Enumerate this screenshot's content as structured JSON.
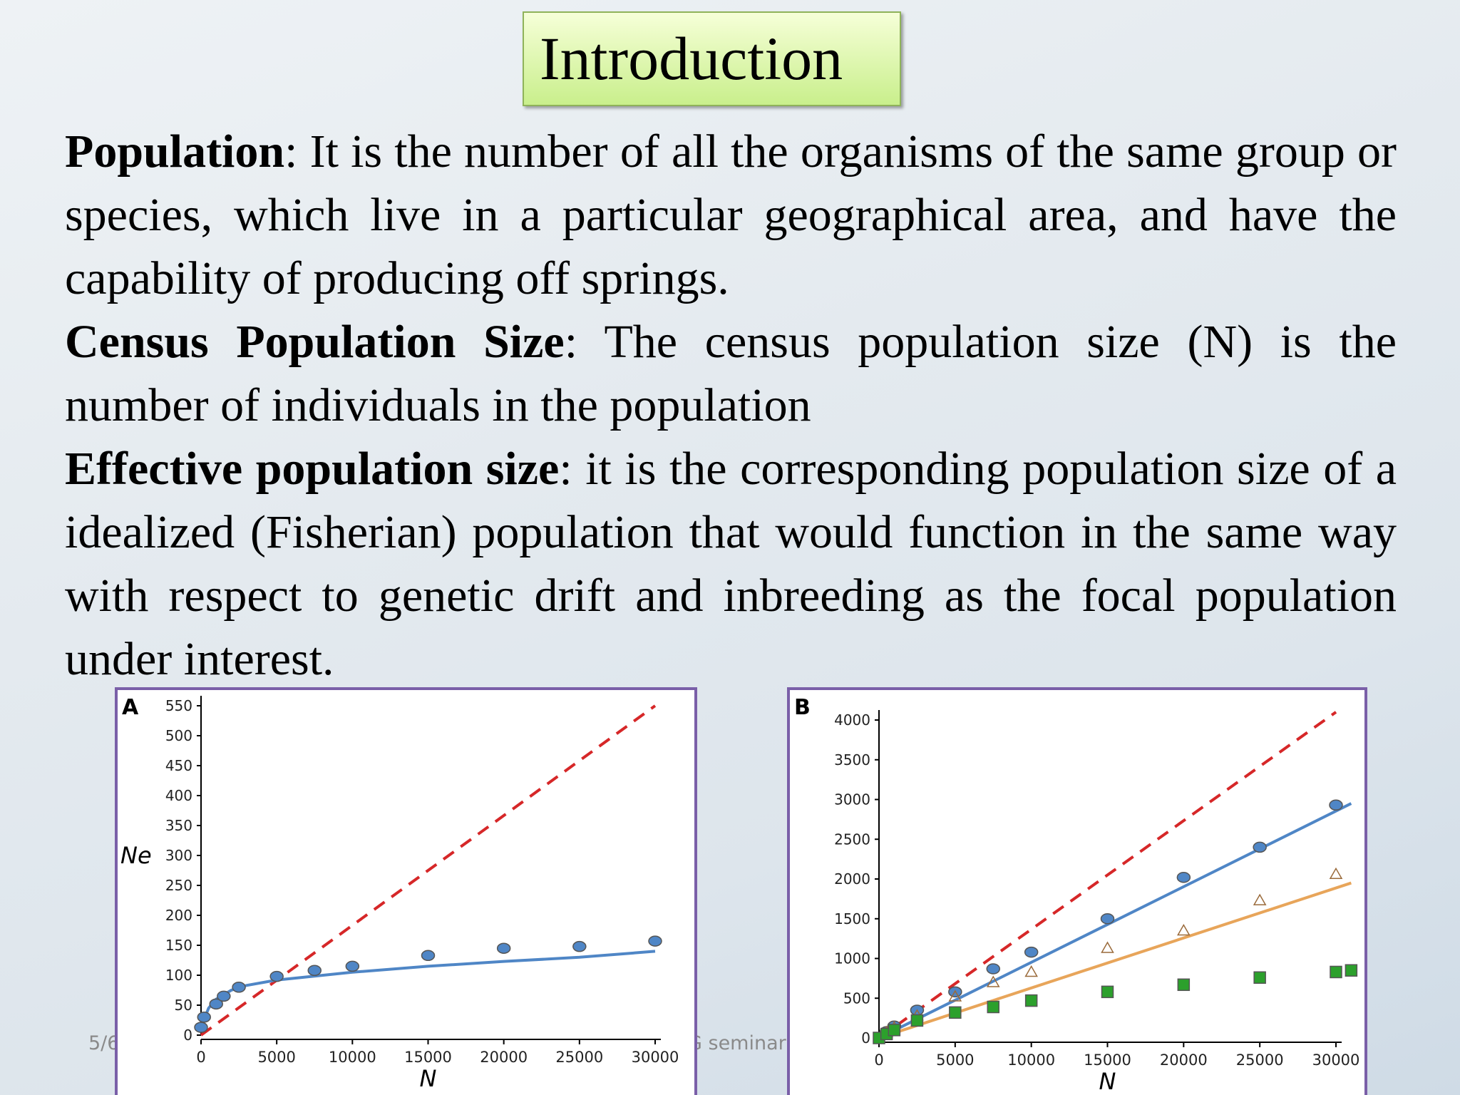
{
  "header": {
    "title": "Introduction"
  },
  "paragraphs": [
    {
      "term": "Population",
      "text": ":  It is the number of all the organisms of the same group or species, which live in a particular geographical area, and have the capability of  producing off springs."
    },
    {
      "term": "Census Population Size",
      "text": ": The census population size (N) is the number of individuals in the population"
    },
    {
      "term": "Effective population size",
      "text": ":  it is the corresponding population size of a idealized (Fisherian) population that would function in the same way with respect to genetic drift and inbreeding as the focal population under interest."
    }
  ],
  "footer": {
    "date": "5/6",
    "event": "G seminar"
  },
  "chart_data": [
    {
      "type": "line",
      "panel_label": "A",
      "xlabel": "N",
      "ylabel": "Ne",
      "xlim": [
        0,
        30000
      ],
      "xticks": [
        0,
        5000,
        10000,
        15000,
        20000,
        25000,
        30000
      ],
      "ylim": [
        0,
        550
      ],
      "yticks": [
        0,
        50,
        100,
        150,
        200,
        250,
        300,
        350,
        400,
        450,
        500,
        550
      ],
      "series": [
        {
          "color": "#d62728",
          "marker": "none",
          "dash": true,
          "x": [
            0,
            30000
          ],
          "values": [
            0,
            550
          ]
        },
        {
          "color": "#4f86c6",
          "marker": "none",
          "dash": false,
          "x": [
            100,
            500,
            1000,
            2000,
            3000,
            5000,
            10000,
            15000,
            20000,
            25000,
            30000
          ],
          "values": [
            20,
            45,
            60,
            75,
            83,
            92,
            105,
            115,
            123,
            130,
            140
          ]
        },
        {
          "color": "#4f86c6",
          "marker": "circle",
          "dash": false,
          "x": [
            0,
            200,
            1000,
            1500,
            2500,
            5000,
            7500,
            10000,
            15000,
            20000,
            25000,
            30000
          ],
          "values": [
            13,
            30,
            52,
            65,
            80,
            98,
            108,
            115,
            133,
            145,
            148,
            157
          ]
        }
      ]
    },
    {
      "type": "line",
      "panel_label": "B",
      "xlabel": "N",
      "xlim": [
        0,
        30000
      ],
      "xticks": [
        0,
        5000,
        10000,
        15000,
        20000,
        25000,
        30000
      ],
      "ylim": [
        0,
        4000
      ],
      "yticks": [
        0,
        500,
        1000,
        1500,
        2000,
        2500,
        3000,
        3500,
        4000
      ],
      "series": [
        {
          "color": "#d62728",
          "marker": "none",
          "dash": true,
          "x": [
            0,
            30000
          ],
          "values": [
            0,
            4100
          ]
        },
        {
          "color": "#4f86c6",
          "marker": "none",
          "dash": false,
          "x": [
            0,
            31000
          ],
          "values": [
            0,
            2950
          ]
        },
        {
          "color": "#4f86c6",
          "marker": "circle",
          "dash": false,
          "x": [
            500,
            1000,
            2500,
            5000,
            7500,
            10000,
            15000,
            20000,
            25000,
            30000
          ],
          "values": [
            80,
            150,
            350,
            580,
            870,
            1080,
            1500,
            2020,
            2400,
            2930
          ]
        },
        {
          "color": "#e8a55a",
          "marker": "none",
          "dash": false,
          "x": [
            0,
            31000
          ],
          "values": [
            0,
            1950
          ]
        },
        {
          "color": "#e8a55a",
          "marker": "triangle",
          "dash": false,
          "x": [
            500,
            1000,
            2500,
            5000,
            7500,
            10000,
            15000,
            20000,
            25000,
            30000
          ],
          "values": [
            70,
            130,
            280,
            520,
            700,
            830,
            1130,
            1350,
            1730,
            2060
          ]
        },
        {
          "color": "#2ca02c",
          "marker": "square",
          "dash": false,
          "x": [
            0,
            500,
            1000,
            2500,
            5000,
            7500,
            10000,
            15000,
            20000,
            25000,
            30000,
            31000
          ],
          "values": [
            0,
            50,
            100,
            220,
            320,
            390,
            470,
            580,
            670,
            760,
            830,
            850
          ]
        }
      ]
    }
  ]
}
